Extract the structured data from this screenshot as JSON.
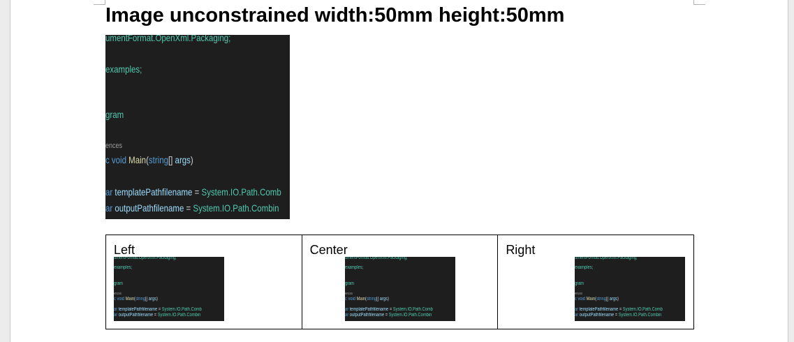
{
  "heading": "Image unconstrained width:50mm height:50mm",
  "code": {
    "line1": "umentFormat.OpenXml.Packaging;",
    "line2": "examples;",
    "line3": "gram",
    "line4": "ences",
    "line5_kw": "c void ",
    "line5_fn": "Main",
    "line5_pn1": "(",
    "line5_kw2": "string",
    "line5_pn2": "[] ",
    "line5_id": "args",
    "line5_pn3": ")",
    "line6_kw": "ar ",
    "line6_id": "templatePathfilename",
    "line6_pn": " = ",
    "line6_tp": "System.IO.Path.Comb",
    "line7_kw": "ar ",
    "line7_id": "outputPathfilename",
    "line7_pn": " = ",
    "line7_tp": "System.IO.Path.Combin"
  },
  "table": {
    "cells": [
      {
        "label": "Left",
        "align": "left"
      },
      {
        "label": "Center",
        "align": "center"
      },
      {
        "label": "Right",
        "align": "right"
      }
    ]
  },
  "colors": {
    "code_bg": "#1e1e1e",
    "type": "#4ec9b0",
    "keyword": "#569cd6",
    "function": "#dcdcaa",
    "identifier": "#9cdcfe"
  }
}
